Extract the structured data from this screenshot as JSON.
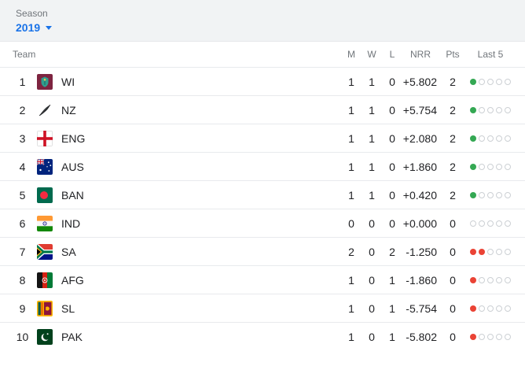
{
  "season": {
    "label": "Season",
    "value": "2019"
  },
  "table": {
    "headers": {
      "team": "Team",
      "m": "M",
      "w": "W",
      "l": "L",
      "nrr": "NRR",
      "pts": "Pts",
      "last5": "Last 5"
    },
    "rows": [
      {
        "rank": "1",
        "team": "WI",
        "flag": "wi",
        "m": "1",
        "w": "1",
        "l": "0",
        "nrr": "+5.802",
        "pts": "2",
        "last5": [
          "W",
          "",
          "",
          "",
          ""
        ]
      },
      {
        "rank": "2",
        "team": "NZ",
        "flag": "nz",
        "m": "1",
        "w": "1",
        "l": "0",
        "nrr": "+5.754",
        "pts": "2",
        "last5": [
          "W",
          "",
          "",
          "",
          ""
        ]
      },
      {
        "rank": "3",
        "team": "ENG",
        "flag": "eng",
        "m": "1",
        "w": "1",
        "l": "0",
        "nrr": "+2.080",
        "pts": "2",
        "last5": [
          "W",
          "",
          "",
          "",
          ""
        ]
      },
      {
        "rank": "4",
        "team": "AUS",
        "flag": "aus",
        "m": "1",
        "w": "1",
        "l": "0",
        "nrr": "+1.860",
        "pts": "2",
        "last5": [
          "W",
          "",
          "",
          "",
          ""
        ]
      },
      {
        "rank": "5",
        "team": "BAN",
        "flag": "ban",
        "m": "1",
        "w": "1",
        "l": "0",
        "nrr": "+0.420",
        "pts": "2",
        "last5": [
          "W",
          "",
          "",
          "",
          ""
        ]
      },
      {
        "rank": "6",
        "team": "IND",
        "flag": "ind",
        "m": "0",
        "w": "0",
        "l": "0",
        "nrr": "+0.000",
        "pts": "0",
        "last5": [
          "",
          "",
          "",
          "",
          ""
        ]
      },
      {
        "rank": "7",
        "team": "SA",
        "flag": "sa",
        "m": "2",
        "w": "0",
        "l": "2",
        "nrr": "-1.250",
        "pts": "0",
        "last5": [
          "L",
          "L",
          "",
          "",
          ""
        ]
      },
      {
        "rank": "8",
        "team": "AFG",
        "flag": "afg",
        "m": "1",
        "w": "0",
        "l": "1",
        "nrr": "-1.860",
        "pts": "0",
        "last5": [
          "L",
          "",
          "",
          "",
          ""
        ]
      },
      {
        "rank": "9",
        "team": "SL",
        "flag": "sl",
        "m": "1",
        "w": "0",
        "l": "1",
        "nrr": "-5.754",
        "pts": "0",
        "last5": [
          "L",
          "",
          "",
          "",
          ""
        ]
      },
      {
        "rank": "10",
        "team": "PAK",
        "flag": "pak",
        "m": "1",
        "w": "0",
        "l": "1",
        "nrr": "-5.802",
        "pts": "0",
        "last5": [
          "L",
          "",
          "",
          "",
          ""
        ]
      }
    ]
  },
  "colors": {
    "accent_blue": "#1a73e8",
    "win_dot": "#34a853",
    "loss_dot": "#ea4335",
    "season_bar_bg": "#f1f3f4"
  }
}
